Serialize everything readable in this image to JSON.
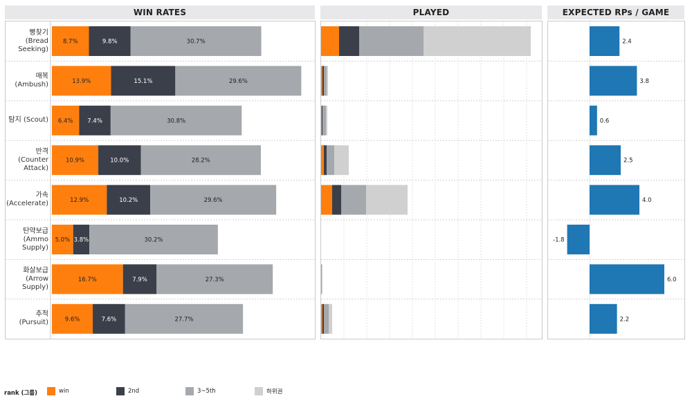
{
  "panels": {
    "win_rates": "WIN RATES",
    "played": "PLAYED",
    "expected_rp": "EXPECTED RPs / GAME"
  },
  "legend": {
    "title": "rank (그룹)",
    "items": [
      {
        "label": "win",
        "color": "#ff7f0e"
      },
      {
        "label": "2nd",
        "color": "#3b3f4a"
      },
      {
        "label": "3~5th",
        "color": "#a5a9ad"
      },
      {
        "label": "하위권",
        "color": "#d0d0d0"
      }
    ]
  },
  "chart_data": [
    {
      "type": "bar",
      "stacked": true,
      "orientation": "horizontal",
      "title": "WIN RATES",
      "categories": [
        "빵찾기\n(Bread\nSeeking)",
        "매복\n(Ambush)",
        "탐지 (Scout)",
        "반격\n(Counter\nAttack)",
        "가속\n(Accelerate)",
        "탄약보급\n(Ammo\nSupply)",
        "화살보급\n(Arrow\nSupply)",
        "추적\n(Pursuit)"
      ],
      "series": [
        {
          "name": "win",
          "color": "#ff7f0e",
          "values": [
            8.7,
            13.9,
            6.4,
            10.9,
            12.9,
            5.0,
            16.7,
            9.6
          ],
          "labels": [
            "8.7%",
            "13.9%",
            "6.4%",
            "10.9%",
            "12.9%",
            "5.0%",
            "16.7%",
            "9.6%"
          ]
        },
        {
          "name": "2nd",
          "color": "#3b3f4a",
          "values": [
            9.8,
            15.1,
            7.4,
            10.0,
            10.2,
            3.8,
            7.9,
            7.6
          ],
          "labels": [
            "9.8%",
            "15.1%",
            "7.4%",
            "10.0%",
            "10.2%",
            "3.8%",
            "7.9%",
            "7.6%"
          ]
        },
        {
          "name": "3~5th",
          "color": "#a5a9ad",
          "values": [
            30.7,
            29.6,
            30.8,
            28.2,
            29.6,
            30.2,
            27.3,
            27.7
          ],
          "labels": [
            "30.7%",
            "29.6%",
            "30.8%",
            "28.2%",
            "29.6%",
            "30.2%",
            "27.3%",
            "27.7%"
          ]
        }
      ],
      "xlim": [
        0,
        60
      ]
    },
    {
      "type": "bar",
      "stacked": true,
      "orientation": "horizontal",
      "title": "PLAYED",
      "categories": [
        "빵찾기\n(Bread\nSeeking)",
        "매복\n(Ambush)",
        "탐지 (Scout)",
        "반격\n(Counter\nAttack)",
        "가속\n(Accelerate)",
        "탄약보급\n(Ammo\nSupply)",
        "화살보급\n(Arrow\nSupply)",
        "추적\n(Pursuit)"
      ],
      "series": [
        {
          "name": "win",
          "color": "#ff7f0e",
          "values": [
            26,
            2,
            1,
            4,
            16,
            0,
            0,
            2
          ]
        },
        {
          "name": "2nd",
          "color": "#3b3f4a",
          "values": [
            29,
            2,
            1,
            4,
            13,
            0,
            0,
            2
          ]
        },
        {
          "name": "3~5th",
          "color": "#a5a9ad",
          "values": [
            93,
            4,
            5,
            11,
            36,
            0,
            1,
            7
          ]
        },
        {
          "name": "하위권",
          "color": "#d0d0d0",
          "values": [
            155,
            2,
            2,
            21,
            60,
            0,
            1,
            5
          ]
        }
      ],
      "xlim": [
        0,
        310
      ],
      "grid": true
    },
    {
      "type": "bar",
      "orientation": "horizontal",
      "title": "EXPECTED RPs / GAME",
      "categories": [
        "빵찾기\n(Bread\nSeeking)",
        "매복\n(Ambush)",
        "탐지 (Scout)",
        "반격\n(Counter\nAttack)",
        "가속\n(Accelerate)",
        "탄약보급\n(Ammo\nSupply)",
        "화살보급\n(Arrow\nSupply)",
        "추적\n(Pursuit)"
      ],
      "values": [
        2.4,
        3.8,
        0.6,
        2.5,
        4.0,
        -1.8,
        6.0,
        2.2
      ],
      "labels": [
        "2.4",
        "3.8",
        "0.6",
        "2.5",
        "4.0",
        "-1.8",
        "6.0",
        "2.2"
      ],
      "color": "#1f77b4",
      "xlim": [
        -2.0,
        6.5
      ]
    }
  ]
}
